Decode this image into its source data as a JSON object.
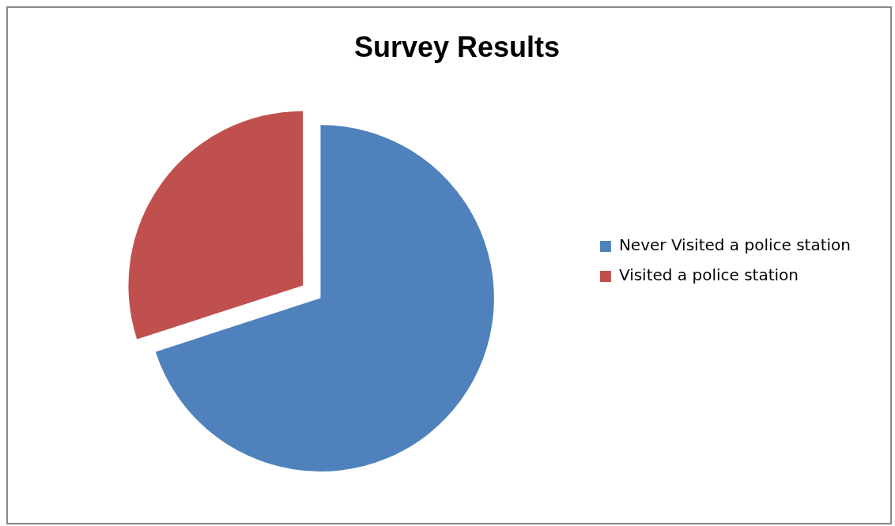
{
  "chart_data": {
    "type": "pie",
    "title": "Survey Results",
    "categories": [
      "Never Visited a police station",
      "Visited a police station"
    ],
    "values": [
      70,
      30
    ],
    "colors": [
      "#4f81bd",
      "#c0504d"
    ],
    "legend": "right"
  }
}
